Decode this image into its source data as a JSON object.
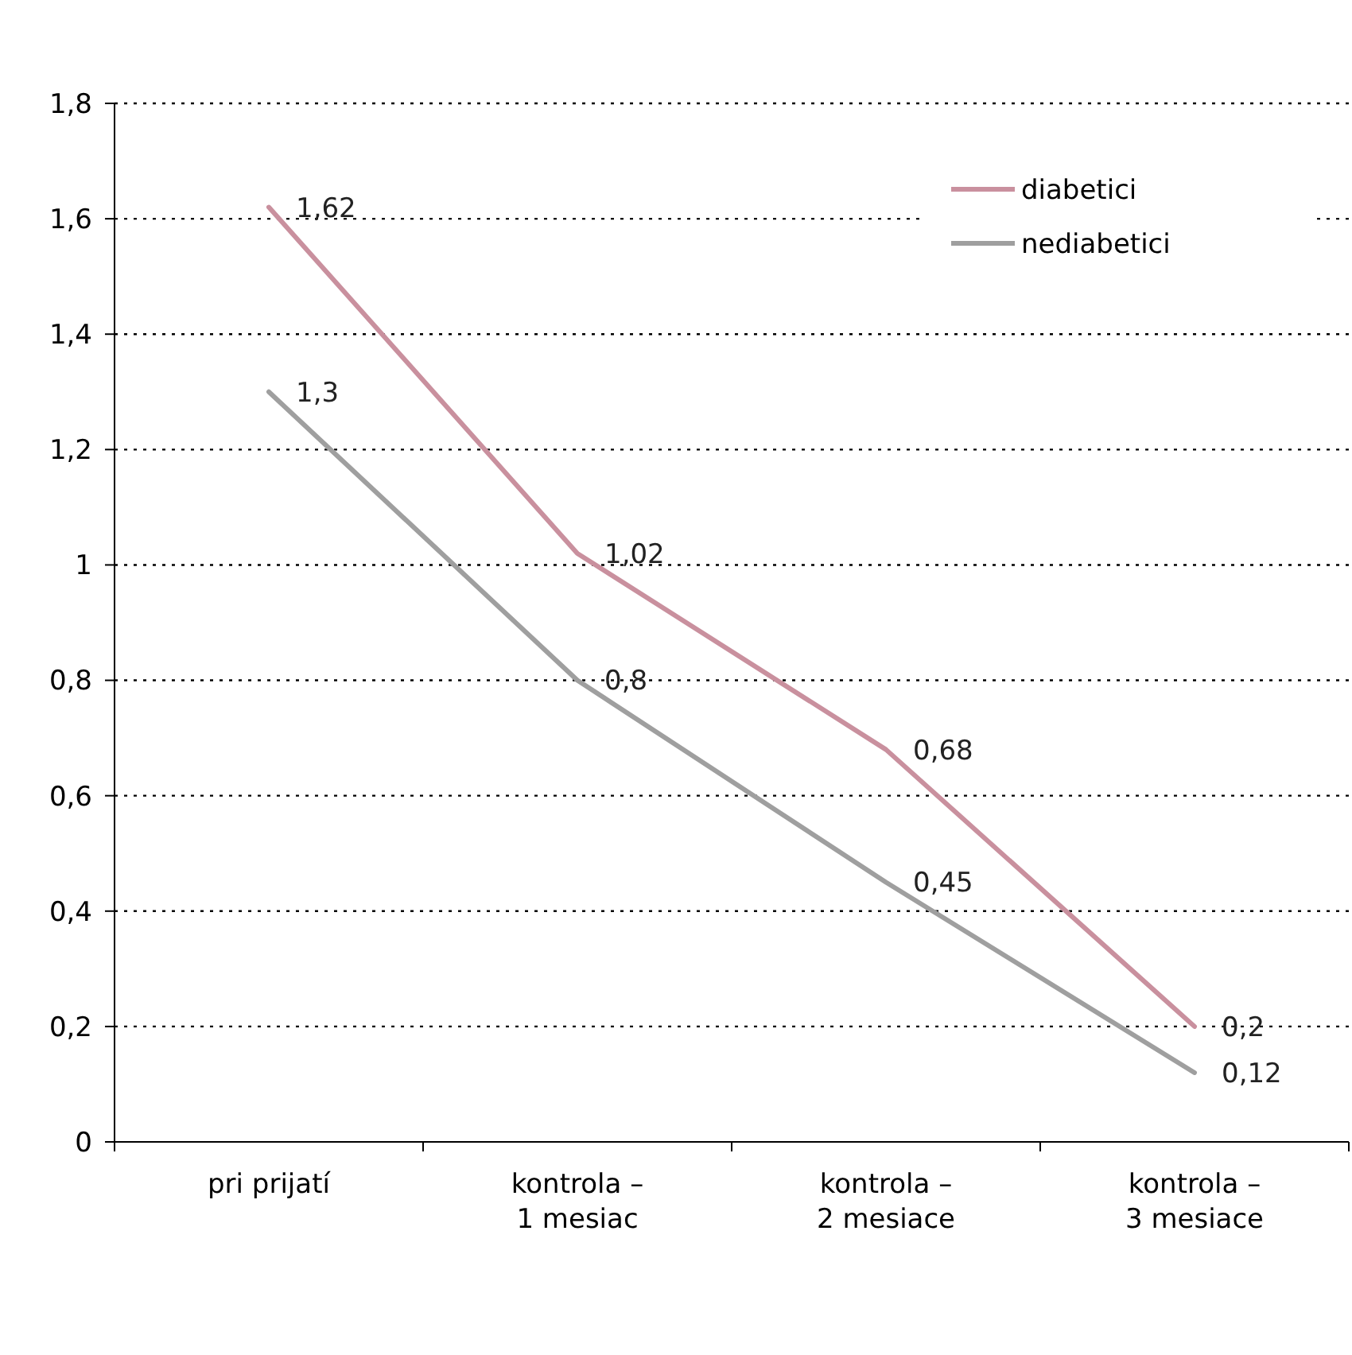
{
  "chart_data": {
    "type": "line",
    "categories": [
      "pri prijatí",
      "kontrola – 1 mesiac",
      "kontrola – 2 mesiace",
      "kontrola – 3 mesiace"
    ],
    "series": [
      {
        "name": "diabetici",
        "color": "#c9909e",
        "values": [
          1.62,
          1.02,
          0.68,
          0.2
        ],
        "value_labels": [
          "1,62",
          "1,02",
          "0,68",
          "0,2"
        ]
      },
      {
        "name": "nediabetici",
        "color": "#9f9f9f",
        "values": [
          1.3,
          0.8,
          0.45,
          0.12
        ],
        "value_labels": [
          "1,3",
          "0,8",
          "0,45",
          "0,12"
        ]
      }
    ],
    "ylim": [
      0,
      1.8
    ],
    "yticks": [
      0,
      {
        "value": 0.2,
        "label": "0,2"
      },
      {
        "value": 0.4,
        "label": "0,4"
      },
      {
        "value": 0.6,
        "label": "0,6"
      },
      {
        "value": 0.8,
        "label": "0,8"
      },
      1,
      {
        "value": 1.2,
        "label": "1,2"
      },
      {
        "value": 1.4,
        "label": "1,4"
      },
      {
        "value": 1.6,
        "label": "1,6"
      },
      {
        "value": 1.8,
        "label": "1,8"
      }
    ],
    "grid": "y",
    "legend": "top right",
    "marker": "none",
    "line_style": "solid"
  }
}
